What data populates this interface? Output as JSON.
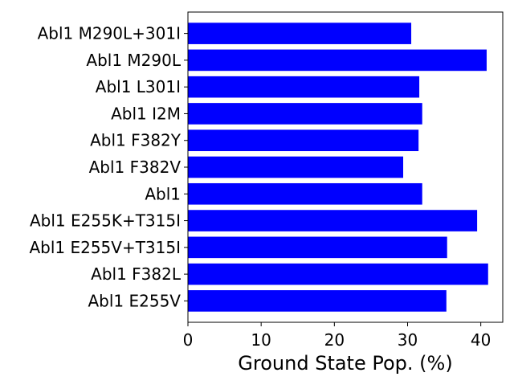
{
  "chart_data": {
    "type": "bar",
    "orientation": "horizontal",
    "categories": [
      "Abl1 E255V",
      "Abl1 F382L",
      "Abl1 E255V+T315I",
      "Abl1 E255K+T315I",
      "Abl1",
      "Abl1 F382V",
      "Abl1 F382Y",
      "Abl1 I2M",
      "Abl1 L301I",
      "Abl1 M290L",
      "Abl1 M290L+301I"
    ],
    "values": [
      35.3,
      41.0,
      35.4,
      39.5,
      32.0,
      29.4,
      31.5,
      32.0,
      31.6,
      40.8,
      30.5
    ],
    "xlabel": "Ground State Pop. (%)",
    "ylabel": "",
    "title": "",
    "xlim": [
      0,
      43
    ],
    "xticks": [
      0,
      10,
      20,
      30,
      40
    ],
    "xtick_labels": [
      "0",
      "10",
      "20",
      "30",
      "40"
    ],
    "bar_color": "#0000ff",
    "grid": false,
    "legend": "none"
  }
}
